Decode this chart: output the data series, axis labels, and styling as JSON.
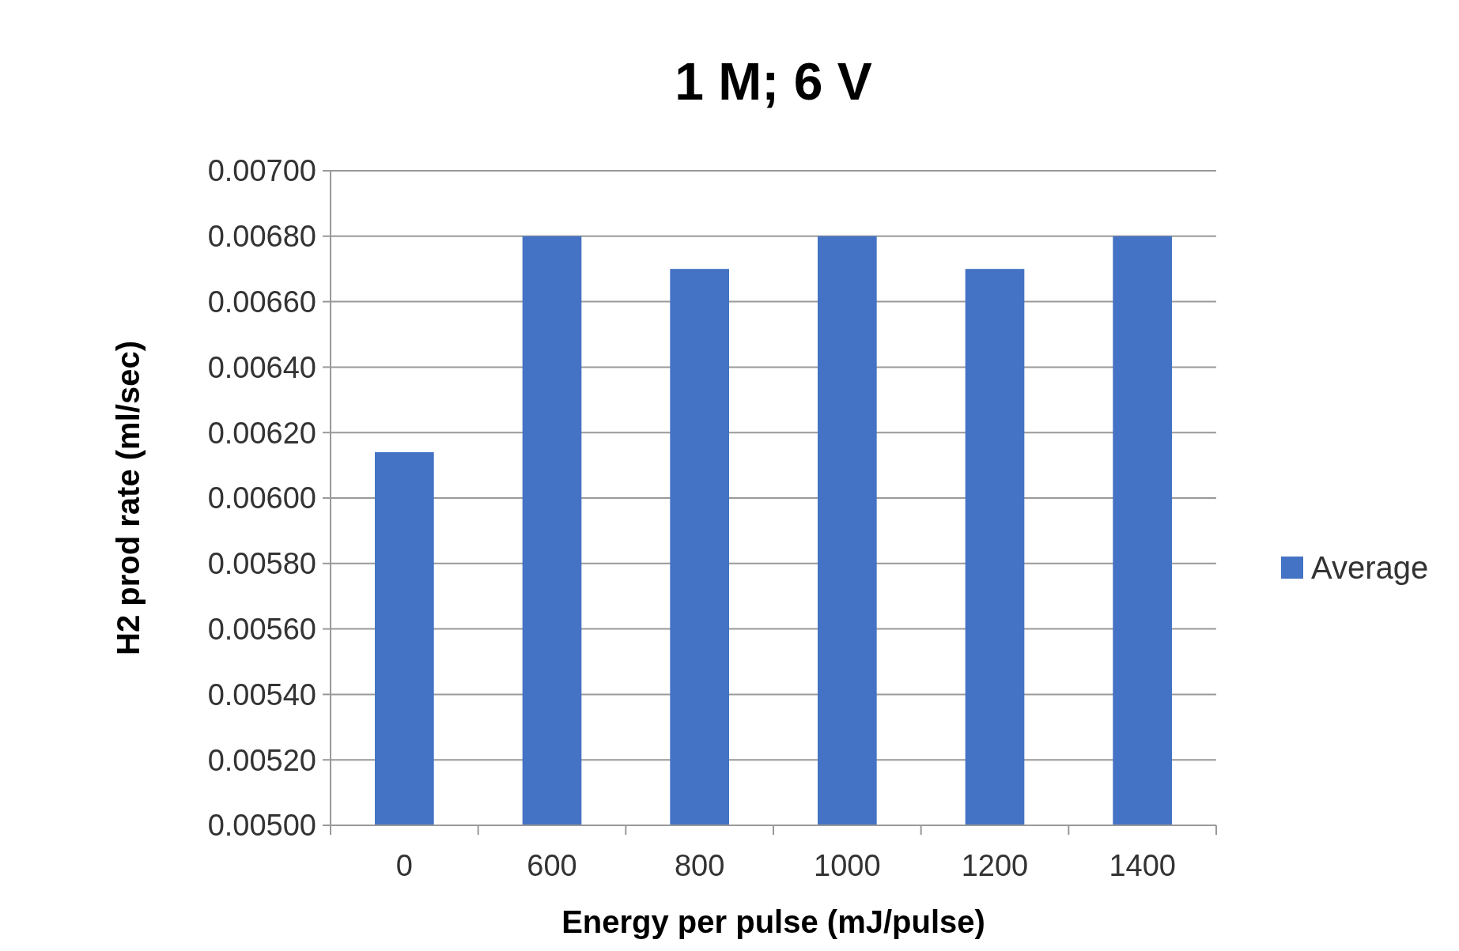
{
  "chart_data": {
    "type": "bar",
    "title": "1 M; 6 V",
    "xlabel": "Energy per pulse (mJ/pulse)",
    "ylabel": "H2 prod rate (ml/sec)",
    "categories": [
      "0",
      "600",
      "800",
      "1000",
      "1200",
      "1400"
    ],
    "series": [
      {
        "name": "Average",
        "color": "#4472c4",
        "values": [
          0.00614,
          0.0068,
          0.0067,
          0.0068,
          0.0067,
          0.0068
        ]
      }
    ],
    "ylim": [
      0.005,
      0.007
    ],
    "yticks": [
      {
        "value": 0.005,
        "label": "0.00500"
      },
      {
        "value": 0.0052,
        "label": "0.00520"
      },
      {
        "value": 0.0054,
        "label": "0.00540"
      },
      {
        "value": 0.0056,
        "label": "0.00560"
      },
      {
        "value": 0.0058,
        "label": "0.00580"
      },
      {
        "value": 0.006,
        "label": "0.00600"
      },
      {
        "value": 0.0062,
        "label": "0.00620"
      },
      {
        "value": 0.0064,
        "label": "0.00640"
      },
      {
        "value": 0.0066,
        "label": "0.00660"
      },
      {
        "value": 0.0068,
        "label": "0.00680"
      },
      {
        "value": 0.007,
        "label": "0.00700"
      }
    ],
    "grid": "y",
    "legend": "right"
  }
}
